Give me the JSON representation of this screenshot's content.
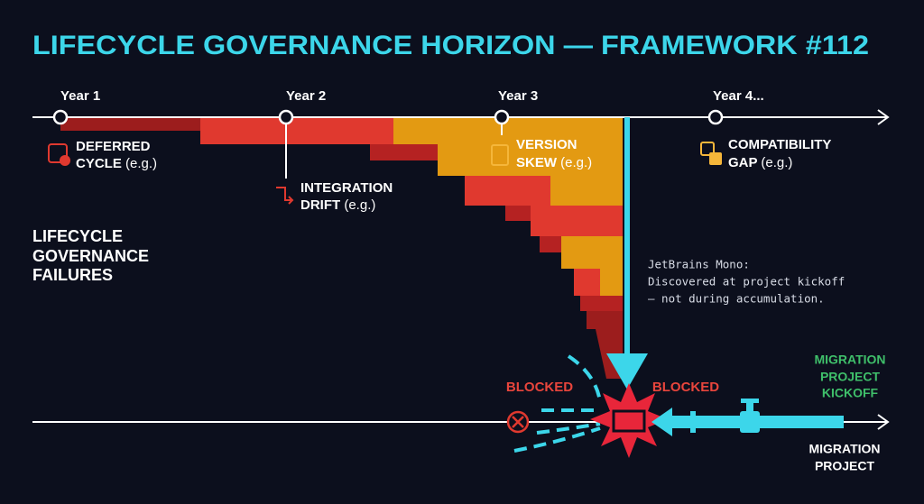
{
  "title": "LIFECYCLE GOVERNANCE HORIZON — FRAMEWORK #112",
  "timeline": {
    "years": [
      "Year 1",
      "Year 2",
      "Year 3",
      "Year 4..."
    ]
  },
  "failures": [
    {
      "lines": [
        "DEFERRED",
        "CYCLE"
      ],
      "note": "(e.g.)"
    },
    {
      "lines": [
        "INTEGRATION",
        "DRIFT"
      ],
      "note": "(e.g.)"
    },
    {
      "lines": [
        "VERSION",
        "SKEW"
      ],
      "note": "(e.g.)"
    },
    {
      "lines": [
        "COMPATIBILITY",
        "GAP"
      ],
      "note": "(e.g.)"
    }
  ],
  "side_label": [
    "LIFECYCLE",
    "GOVERNANCE",
    "FAILURES"
  ],
  "annotation": [
    "JetBrains Mono:",
    "Discovered at project kickoff",
    "— not during accumulation."
  ],
  "blocked": [
    "BLOCKED",
    "BLOCKED"
  ],
  "kickoff": [
    "MIGRATION",
    "PROJECT",
    "KICKOFF"
  ],
  "migration": [
    "MIGRATION",
    "PROJECT"
  ]
}
